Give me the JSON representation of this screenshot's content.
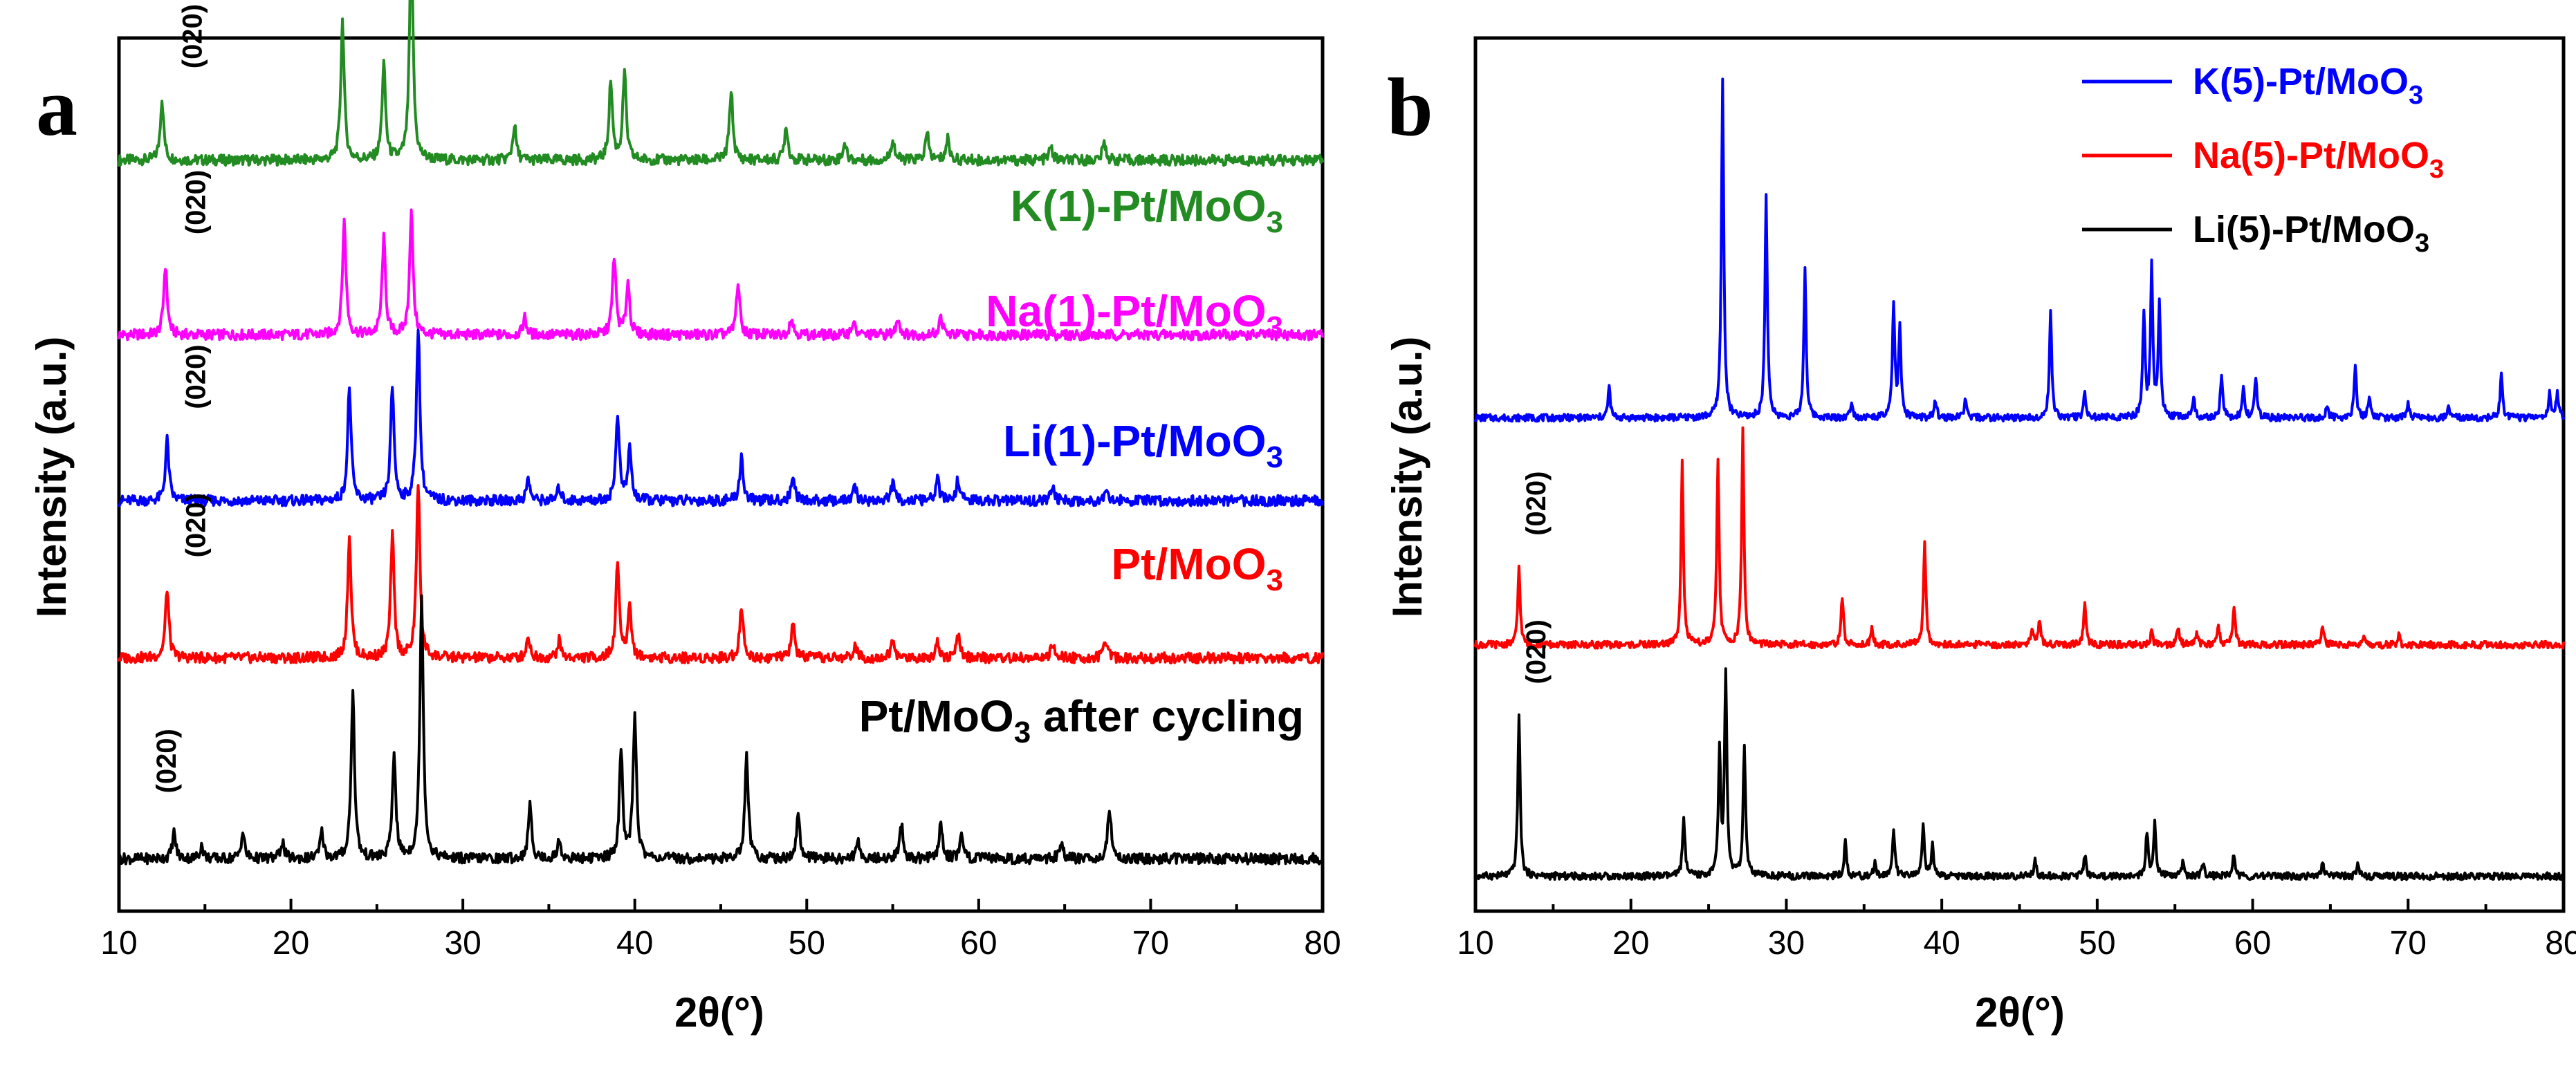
{
  "chart_data": [
    {
      "panel": "a",
      "type": "line",
      "xlabel": "2θ(°)",
      "ylabel": "Intensity (a.u.)",
      "xlim": [
        10,
        80
      ],
      "xticks": [
        "10",
        "20",
        "30",
        "40",
        "50",
        "60",
        "70",
        "80"
      ],
      "series": [
        {
          "name": "K(1)-Pt/MoO",
          "sub": "3",
          "color": "#228B22",
          "baseline": 0.86,
          "peaks": [
            [
              12.5,
              0.07
            ],
            [
              23.0,
              0.16
            ],
            [
              25.4,
              0.11
            ],
            [
              27.0,
              0.26
            ],
            [
              33.0,
              0.04
            ],
            [
              38.6,
              0.09
            ],
            [
              39.4,
              0.1
            ],
            [
              45.6,
              0.08
            ],
            [
              48.8,
              0.04
            ],
            [
              52.2,
              0.02
            ],
            [
              55.0,
              0.025
            ],
            [
              57.0,
              0.03
            ],
            [
              58.2,
              0.025
            ],
            [
              64.2,
              0.015
            ],
            [
              67.3,
              0.02
            ]
          ],
          "annotation": "(020)",
          "annotation_x": 14.8
        },
        {
          "name": "Na(1)-Pt/MoO",
          "sub": "3",
          "color": "#FF00FF",
          "baseline": 0.66,
          "peaks": [
            [
              12.7,
              0.08
            ],
            [
              23.1,
              0.13
            ],
            [
              25.4,
              0.11
            ],
            [
              27.0,
              0.14
            ],
            [
              33.6,
              0.02
            ],
            [
              38.8,
              0.09
            ],
            [
              39.6,
              0.06
            ],
            [
              46.0,
              0.06
            ],
            [
              49.1,
              0.02
            ],
            [
              52.7,
              0.015
            ],
            [
              55.3,
              0.02
            ],
            [
              57.8,
              0.02
            ]
          ],
          "annotation": "(020)",
          "annotation_x": 15.0
        },
        {
          "name": "Li(1)-Pt/MoO",
          "sub": "3",
          "color": "#0000FF",
          "baseline": 0.47,
          "peaks": [
            [
              12.8,
              0.07
            ],
            [
              23.4,
              0.13
            ],
            [
              25.9,
              0.13
            ],
            [
              27.4,
              0.2
            ],
            [
              33.8,
              0.025
            ],
            [
              35.6,
              0.015
            ],
            [
              39.0,
              0.1
            ],
            [
              39.7,
              0.06
            ],
            [
              46.2,
              0.05
            ],
            [
              49.2,
              0.03
            ],
            [
              52.8,
              0.015
            ],
            [
              55.0,
              0.02
            ],
            [
              57.6,
              0.025
            ],
            [
              58.8,
              0.025
            ],
            [
              64.3,
              0.015
            ],
            [
              67.4,
              0.015
            ]
          ],
          "annotation": "(020)",
          "annotation_x": 15.0
        },
        {
          "name": "Pt/MoO",
          "sub": "3",
          "color": "#FF0000",
          "baseline": 0.29,
          "peaks": [
            [
              12.8,
              0.08
            ],
            [
              23.4,
              0.14
            ],
            [
              25.9,
              0.14
            ],
            [
              27.4,
              0.2
            ],
            [
              33.8,
              0.025
            ],
            [
              35.6,
              0.02
            ],
            [
              39.0,
              0.11
            ],
            [
              39.7,
              0.06
            ],
            [
              46.2,
              0.06
            ],
            [
              49.2,
              0.04
            ],
            [
              52.8,
              0.015
            ],
            [
              55.0,
              0.02
            ],
            [
              57.6,
              0.02
            ],
            [
              58.8,
              0.025
            ],
            [
              64.3,
              0.015
            ],
            [
              67.4,
              0.02
            ]
          ],
          "annotation": "(020)",
          "annotation_x": 15.0
        },
        {
          "name": "Pt/MoO",
          "sub": "3",
          "suffix": " after cycling",
          "color": "#000000",
          "baseline": 0.06,
          "peaks": [
            [
              13.2,
              0.03
            ],
            [
              14.8,
              0.015
            ],
            [
              17.2,
              0.03
            ],
            [
              19.5,
              0.02
            ],
            [
              21.8,
              0.03
            ],
            [
              23.6,
              0.19
            ],
            [
              26.0,
              0.12
            ],
            [
              27.6,
              0.3
            ],
            [
              33.9,
              0.06
            ],
            [
              35.6,
              0.02
            ],
            [
              39.2,
              0.12
            ],
            [
              40.0,
              0.16
            ],
            [
              46.5,
              0.12
            ],
            [
              49.5,
              0.05
            ],
            [
              53.0,
              0.02
            ],
            [
              55.5,
              0.04
            ],
            [
              57.8,
              0.04
            ],
            [
              59.0,
              0.03
            ],
            [
              64.8,
              0.02
            ],
            [
              67.6,
              0.06
            ]
          ],
          "annotation": "(020)",
          "annotation_x": 13.3
        }
      ]
    },
    {
      "panel": "b",
      "type": "line",
      "xlabel": "2θ(°)",
      "ylabel": "Intensity (a.u.)",
      "xlim": [
        10,
        80
      ],
      "xticks": [
        "10",
        "20",
        "30",
        "40",
        "50",
        "60",
        "70",
        "80"
      ],
      "legend": "top-right",
      "series": [
        {
          "name": "K(5)-Pt/MoO",
          "sub": "3",
          "color": "#0000FF",
          "baseline": 0.565,
          "peaks": [
            [
              18.6,
              0.035
            ],
            [
              25.9,
              0.385
            ],
            [
              28.7,
              0.255
            ],
            [
              31.2,
              0.17
            ],
            [
              34.2,
              0.02
            ],
            [
              36.9,
              0.13
            ],
            [
              37.3,
              0.1
            ],
            [
              39.6,
              0.02
            ],
            [
              41.5,
              0.02
            ],
            [
              47.0,
              0.12
            ],
            [
              49.2,
              0.03
            ],
            [
              53.0,
              0.12
            ],
            [
              53.5,
              0.17
            ],
            [
              54.0,
              0.13
            ],
            [
              56.2,
              0.025
            ],
            [
              58.0,
              0.05
            ],
            [
              59.4,
              0.035
            ],
            [
              60.2,
              0.045
            ],
            [
              64.8,
              0.015
            ],
            [
              66.6,
              0.06
            ],
            [
              67.5,
              0.025
            ],
            [
              70.0,
              0.015
            ],
            [
              72.6,
              0.01
            ],
            [
              76.0,
              0.05
            ],
            [
              79.1,
              0.03
            ],
            [
              79.6,
              0.03
            ]
          ]
        },
        {
          "name": "Na(5)-Pt/MoO",
          "sub": "3",
          "color": "#FF0000",
          "baseline": 0.305,
          "peaks": [
            [
              12.8,
              0.09
            ],
            [
              23.3,
              0.21
            ],
            [
              25.6,
              0.215
            ],
            [
              27.2,
              0.245
            ],
            [
              33.6,
              0.055
            ],
            [
              35.5,
              0.02
            ],
            [
              38.9,
              0.12
            ],
            [
              45.8,
              0.02
            ],
            [
              46.3,
              0.03
            ],
            [
              49.2,
              0.045
            ],
            [
              53.5,
              0.015
            ],
            [
              55.2,
              0.02
            ],
            [
              56.4,
              0.015
            ],
            [
              57.8,
              0.02
            ],
            [
              58.8,
              0.045
            ],
            [
              64.5,
              0.02
            ],
            [
              67.2,
              0.01
            ],
            [
              69.4,
              0.01
            ]
          ],
          "annotation": "(020)",
          "annotation_x": 14.5
        },
        {
          "name": "Li(5)-Pt/MoO",
          "sub": "3",
          "color": "#000000",
          "baseline": 0.04,
          "peaks": [
            [
              12.8,
              0.185
            ],
            [
              23.4,
              0.07
            ],
            [
              25.7,
              0.14
            ],
            [
              26.1,
              0.23
            ],
            [
              27.3,
              0.15
            ],
            [
              33.8,
              0.04
            ],
            [
              35.7,
              0.015
            ],
            [
              36.9,
              0.055
            ],
            [
              38.8,
              0.06
            ],
            [
              39.4,
              0.035
            ],
            [
              46.0,
              0.02
            ],
            [
              49.2,
              0.025
            ],
            [
              53.2,
              0.05
            ],
            [
              53.7,
              0.06
            ],
            [
              55.5,
              0.015
            ],
            [
              56.8,
              0.015
            ],
            [
              58.8,
              0.025
            ],
            [
              64.5,
              0.015
            ],
            [
              66.8,
              0.015
            ]
          ],
          "annotation": "(020)",
          "annotation_x": 14.5
        }
      ]
    }
  ]
}
